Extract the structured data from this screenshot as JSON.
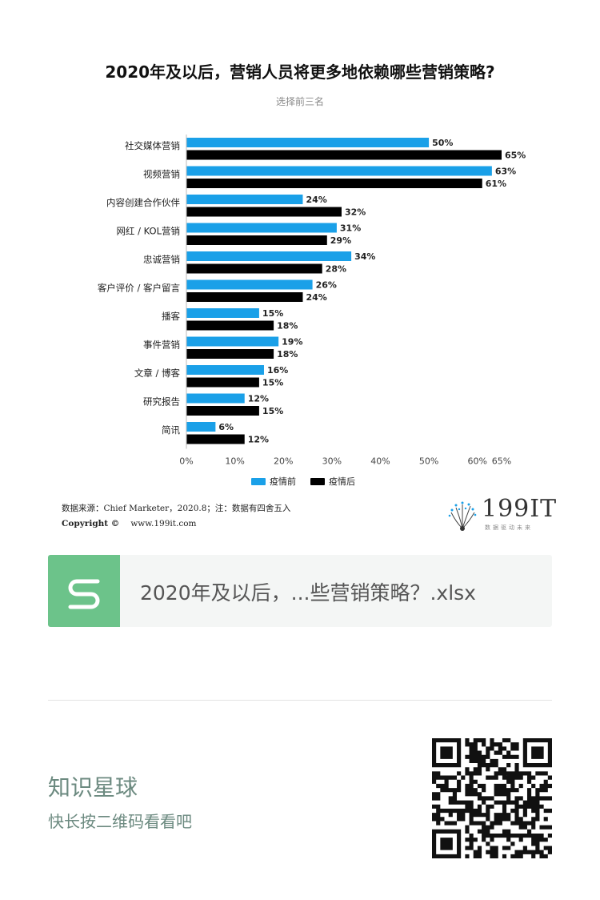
{
  "title": "2020年及以后，营销人员将更多地依赖哪些营销策略?",
  "subtitle": "选择前三名",
  "legend": {
    "before": "疫情前",
    "after": "疫情后"
  },
  "colors": {
    "before": "#1aa0e8",
    "after": "#000000"
  },
  "source": "数据来源：Chief Marketer，2020.8；注：数据有四舍五入",
  "copyright": {
    "label": "Copyright ©",
    "site": "www.199it.com"
  },
  "logo": {
    "text": "199IT",
    "tagline": "数据驱动未来"
  },
  "file": {
    "name": "2020年及以后，...些营销策略？.xlsx"
  },
  "footer": {
    "planet": "知识星球",
    "cta": "快长按二维码看看吧"
  },
  "chart_data": {
    "type": "bar",
    "orientation": "horizontal",
    "categories": [
      "社交媒体营销",
      "视频营销",
      "内容创建合作伙伴",
      "网红 / KOL营销",
      "忠诚营销",
      "客户评价 / 客户留言",
      "播客",
      "事件营销",
      "文章 / 博客",
      "研究报告",
      "简讯"
    ],
    "series": [
      {
        "name": "疫情前",
        "values": [
          50,
          63,
          24,
          31,
          34,
          26,
          15,
          19,
          16,
          12,
          6
        ]
      },
      {
        "name": "疫情后",
        "values": [
          65,
          61,
          32,
          29,
          28,
          24,
          18,
          18,
          15,
          15,
          12
        ]
      }
    ],
    "ticks": [
      "0%",
      "10%",
      "20%",
      "30%",
      "40%",
      "50%",
      "60%",
      "65%"
    ],
    "tick_values": [
      0,
      10,
      20,
      30,
      40,
      50,
      60,
      65
    ],
    "xlim": [
      0,
      65
    ],
    "value_suffix": "%",
    "legend_position": "bottom",
    "grid": false
  }
}
